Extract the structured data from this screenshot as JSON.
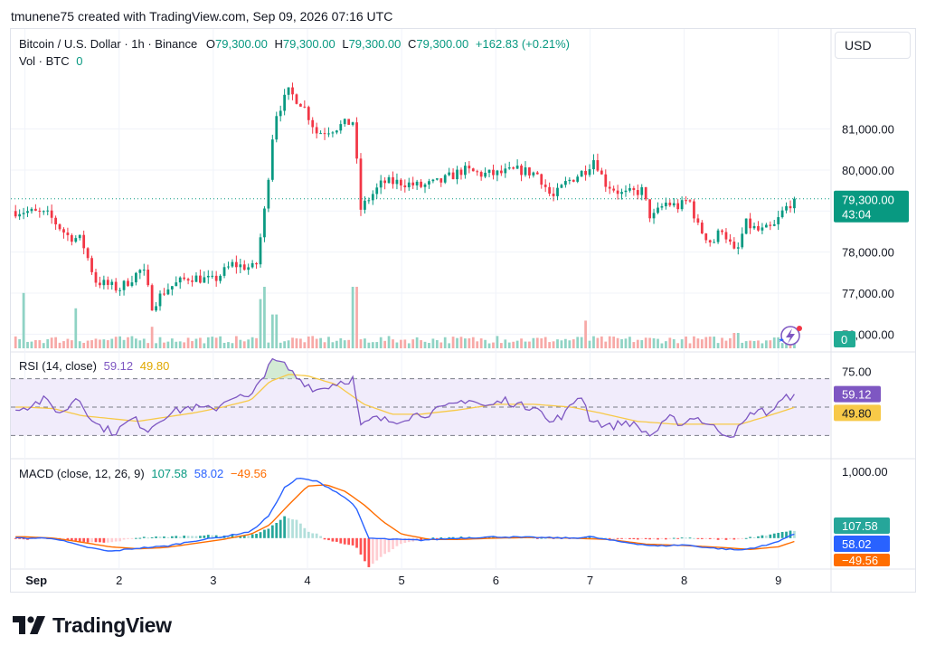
{
  "header": {
    "created_by": "tmunene75 created with TradingView.com, Sep 09, 2026 07:16 UTC"
  },
  "price_legend": {
    "symbol": "Bitcoin / U.S. Dollar · 1h · Binance",
    "o_label": "O",
    "o": "79,300.00",
    "h_label": "H",
    "h": "79,300.00",
    "l_label": "L",
    "l": "79,300.00",
    "c_label": "C",
    "c": "79,300.00",
    "change": "+162.83 (+0.21%)"
  },
  "vol_legend": {
    "label": "Vol · BTC",
    "value": "0"
  },
  "rsi_legend": {
    "label": "RSI (14, close)",
    "rsi": "59.12",
    "ma": "49.80"
  },
  "macd_legend": {
    "label": "MACD (close, 12, 26, 9)",
    "hist": "107.58",
    "macd": "58.02",
    "signal": "−49.56"
  },
  "currency_button": {
    "label": "USD"
  },
  "price_axis": {
    "ticks": [
      "81,000.00",
      "80,000.00",
      "78,000.00",
      "77,000.00",
      "76,000.00"
    ]
  },
  "rsi_axis": {
    "ticks": [
      "75.00"
    ]
  },
  "macd_axis": {
    "ticks": [
      "1,000.00"
    ]
  },
  "time_axis": {
    "labels": [
      "Sep",
      "2",
      "3",
      "4",
      "5",
      "6",
      "7",
      "8",
      "9"
    ]
  },
  "last_price_badge": {
    "price": "79,300.00",
    "countdown": "43:04"
  },
  "volume_badge": {
    "value": "0"
  },
  "rsi_badges": {
    "rsi": "59.12",
    "ma": "49.80"
  },
  "macd_badges": {
    "hist": "107.58",
    "macd": "58.02",
    "signal": "−49.56"
  },
  "brand": {
    "name": "TradingView"
  },
  "colors": {
    "up": "#089981",
    "down": "#f23645",
    "vol_up": "#8fd3c4",
    "vol_down": "#f7a9a7",
    "rsi_line": "#7e57c2",
    "rsi_ma": "#f7c948",
    "rsi_band": "#f1ecfb",
    "macd_line": "#2962ff",
    "signal_line": "#ff6d00",
    "hist_up": "#26a69a",
    "hist_up_light": "#b2dfdb",
    "hist_down": "#ff5252",
    "hist_down_light": "#ffcdd2"
  },
  "chart_data": [
    {
      "type": "candlestick",
      "title": "Bitcoin / U.S. Dollar · 1h · Binance",
      "ylim": [
        75700,
        82600
      ],
      "last_price": 79300,
      "x_range_days": [
        0.85,
        9.55
      ],
      "waypoints": [
        [
          1.0,
          79000
        ],
        [
          1.25,
          78900
        ],
        [
          1.45,
          78400
        ],
        [
          1.6,
          78300
        ],
        [
          1.75,
          77300
        ],
        [
          2.0,
          77100
        ],
        [
          2.25,
          77600
        ],
        [
          2.35,
          76700
        ],
        [
          2.5,
          77100
        ],
        [
          2.75,
          77400
        ],
        [
          3.0,
          77300
        ],
        [
          3.2,
          77700
        ],
        [
          3.45,
          77600
        ],
        [
          3.55,
          79100
        ],
        [
          3.65,
          81300
        ],
        [
          3.8,
          81900
        ],
        [
          3.95,
          81600
        ],
        [
          4.1,
          80900
        ],
        [
          4.25,
          81000
        ],
        [
          4.5,
          81200
        ],
        [
          4.55,
          79000
        ],
        [
          4.65,
          79300
        ],
        [
          4.8,
          79700
        ],
        [
          5.0,
          79700
        ],
        [
          5.2,
          79600
        ],
        [
          5.4,
          79700
        ],
        [
          5.65,
          80000
        ],
        [
          5.85,
          79900
        ],
        [
          6.0,
          79900
        ],
        [
          6.25,
          80000
        ],
        [
          6.45,
          79900
        ],
        [
          6.6,
          79300
        ],
        [
          6.75,
          79700
        ],
        [
          6.95,
          80000
        ],
        [
          7.05,
          80300
        ],
        [
          7.15,
          79700
        ],
        [
          7.35,
          79400
        ],
        [
          7.55,
          79500
        ],
        [
          7.65,
          78800
        ],
        [
          7.8,
          79200
        ],
        [
          7.95,
          79100
        ],
        [
          8.05,
          79300
        ],
        [
          8.15,
          78600
        ],
        [
          8.3,
          78200
        ],
        [
          8.4,
          78600
        ],
        [
          8.55,
          77900
        ],
        [
          8.65,
          78700
        ],
        [
          8.8,
          78500
        ],
        [
          8.95,
          78600
        ],
        [
          9.05,
          79000
        ],
        [
          9.17,
          79300
        ]
      ]
    },
    {
      "type": "bar",
      "title": "Vol · BTC",
      "last_value": 0,
      "spikes": [
        [
          1.0,
          0.9
        ],
        [
          1.55,
          0.65
        ],
        [
          2.35,
          0.35
        ],
        [
          3.5,
          0.8
        ],
        [
          3.55,
          1.0
        ],
        [
          3.65,
          0.55
        ],
        [
          4.5,
          1.0
        ],
        [
          6.0,
          0.2
        ],
        [
          6.95,
          0.45
        ],
        [
          8.55,
          0.25
        ]
      ]
    },
    {
      "type": "line",
      "title": "RSI (14, close)",
      "ylim": [
        15,
        85
      ],
      "bands": [
        70,
        50,
        30
      ],
      "series": [
        {
          "name": "RSI",
          "last": 59.12
        },
        {
          "name": "MA",
          "last": 49.8
        }
      ],
      "rsi_waypoints": [
        [
          1.0,
          50
        ],
        [
          1.2,
          55
        ],
        [
          1.4,
          45
        ],
        [
          1.55,
          58
        ],
        [
          1.75,
          38
        ],
        [
          1.95,
          32
        ],
        [
          2.15,
          42
        ],
        [
          2.3,
          34
        ],
        [
          2.5,
          45
        ],
        [
          2.75,
          50
        ],
        [
          3.0,
          48
        ],
        [
          3.2,
          58
        ],
        [
          3.4,
          56
        ],
        [
          3.55,
          75
        ],
        [
          3.6,
          83
        ],
        [
          3.75,
          80
        ],
        [
          3.9,
          70
        ],
        [
          4.1,
          62
        ],
        [
          4.35,
          68
        ],
        [
          4.5,
          70
        ],
        [
          4.55,
          35
        ],
        [
          4.7,
          42
        ],
        [
          4.9,
          40
        ],
        [
          5.1,
          44
        ],
        [
          5.3,
          46
        ],
        [
          5.5,
          50
        ],
        [
          5.7,
          56
        ],
        [
          5.9,
          50
        ],
        [
          6.1,
          55
        ],
        [
          6.3,
          50
        ],
        [
          6.45,
          52
        ],
        [
          6.55,
          38
        ],
        [
          6.75,
          46
        ],
        [
          6.9,
          60
        ],
        [
          7.0,
          42
        ],
        [
          7.2,
          36
        ],
        [
          7.4,
          40
        ],
        [
          7.65,
          30
        ],
        [
          7.85,
          42
        ],
        [
          8.0,
          38
        ],
        [
          8.1,
          44
        ],
        [
          8.3,
          36
        ],
        [
          8.5,
          30
        ],
        [
          8.6,
          36
        ],
        [
          8.75,
          48
        ],
        [
          8.9,
          46
        ],
        [
          9.05,
          55
        ],
        [
          9.17,
          59.12
        ]
      ],
      "ma_waypoints": [
        [
          1.0,
          50
        ],
        [
          1.3,
          49
        ],
        [
          1.6,
          44
        ],
        [
          1.9,
          42
        ],
        [
          2.2,
          40
        ],
        [
          2.5,
          43
        ],
        [
          2.8,
          46
        ],
        [
          3.1,
          50
        ],
        [
          3.4,
          55
        ],
        [
          3.6,
          68
        ],
        [
          3.8,
          73
        ],
        [
          4.0,
          72
        ],
        [
          4.3,
          66
        ],
        [
          4.6,
          52
        ],
        [
          4.9,
          45
        ],
        [
          5.2,
          45
        ],
        [
          5.6,
          48
        ],
        [
          6.0,
          52
        ],
        [
          6.4,
          52
        ],
        [
          6.8,
          50
        ],
        [
          7.1,
          46
        ],
        [
          7.5,
          40
        ],
        [
          7.9,
          38
        ],
        [
          8.3,
          38
        ],
        [
          8.6,
          38
        ],
        [
          8.9,
          44
        ],
        [
          9.17,
          49.8
        ]
      ]
    },
    {
      "type": "line",
      "title": "MACD (close, 12, 26, 9)",
      "ylim": [
        -450,
        1150
      ],
      "series": [
        {
          "name": "Histogram",
          "last": 107.58
        },
        {
          "name": "MACD",
          "last": 58.02
        },
        {
          "name": "Signal",
          "last": -49.56
        }
      ],
      "macd_waypoints": [
        [
          1.0,
          0
        ],
        [
          1.3,
          0
        ],
        [
          1.6,
          -120
        ],
        [
          1.9,
          -200
        ],
        [
          2.2,
          -150
        ],
        [
          2.5,
          -120
        ],
        [
          2.8,
          -40
        ],
        [
          3.1,
          20
        ],
        [
          3.4,
          100
        ],
        [
          3.6,
          350
        ],
        [
          3.75,
          750
        ],
        [
          3.9,
          900
        ],
        [
          4.1,
          850
        ],
        [
          4.3,
          700
        ],
        [
          4.5,
          500
        ],
        [
          4.65,
          0
        ],
        [
          4.9,
          -20
        ],
        [
          5.2,
          -30
        ],
        [
          5.6,
          0
        ],
        [
          6.0,
          20
        ],
        [
          6.4,
          10
        ],
        [
          6.8,
          0
        ],
        [
          7.0,
          20
        ],
        [
          7.3,
          -50
        ],
        [
          7.7,
          -120
        ],
        [
          8.0,
          -100
        ],
        [
          8.3,
          -150
        ],
        [
          8.6,
          -180
        ],
        [
          8.9,
          -100
        ],
        [
          9.17,
          58.02
        ]
      ],
      "signal_waypoints": [
        [
          1.0,
          20
        ],
        [
          1.3,
          0
        ],
        [
          1.6,
          -60
        ],
        [
          1.9,
          -130
        ],
        [
          2.2,
          -160
        ],
        [
          2.5,
          -140
        ],
        [
          2.8,
          -80
        ],
        [
          3.1,
          -20
        ],
        [
          3.4,
          60
        ],
        [
          3.6,
          200
        ],
        [
          3.8,
          500
        ],
        [
          4.0,
          780
        ],
        [
          4.2,
          800
        ],
        [
          4.4,
          700
        ],
        [
          4.6,
          500
        ],
        [
          4.8,
          250
        ],
        [
          5.0,
          60
        ],
        [
          5.3,
          -20
        ],
        [
          5.6,
          -20
        ],
        [
          6.0,
          0
        ],
        [
          6.4,
          10
        ],
        [
          6.8,
          0
        ],
        [
          7.2,
          -20
        ],
        [
          7.6,
          -90
        ],
        [
          8.0,
          -110
        ],
        [
          8.4,
          -140
        ],
        [
          8.7,
          -170
        ],
        [
          9.0,
          -130
        ],
        [
          9.17,
          -49.56
        ]
      ]
    }
  ]
}
